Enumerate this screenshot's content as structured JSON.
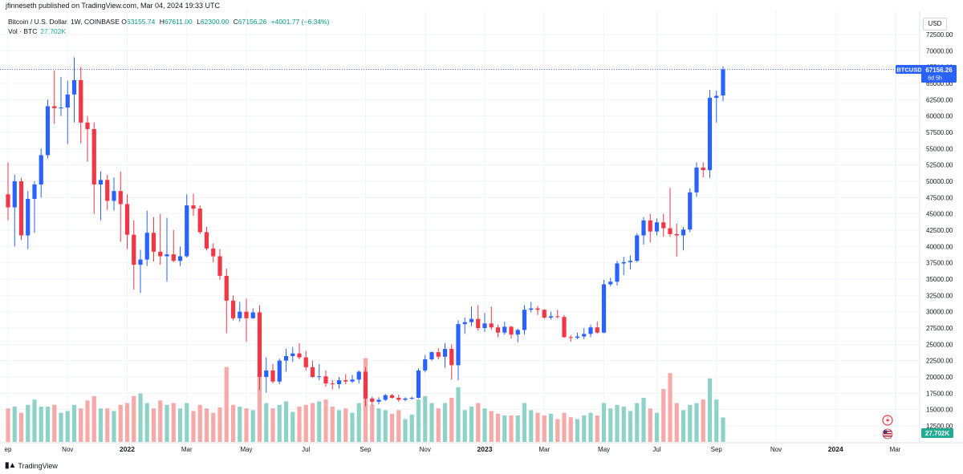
{
  "header": {
    "published_by": "jfinneseth published on TradingView.com, Mar 04, 2024 19:33 UTC"
  },
  "legend": {
    "symbol_title": "Bitcoin / U.S. Dollar, 1W, COINBASE",
    "o_label": "O",
    "o_value": "63155.74",
    "h_label": "H",
    "h_value": "67611.00",
    "l_label": "L",
    "l_value": "62300.00",
    "c_label": "C",
    "c_value": "67156.26",
    "change": "+4001.77 (+6.34%)",
    "vol_label": "Vol · BTC",
    "vol_value": "27.702K"
  },
  "currency": "USD",
  "last_price_tag": {
    "symbol": "BTCUSD",
    "price": "67156.26",
    "countdown": "6d 5h"
  },
  "volume_tag": "27.702K",
  "footer": {
    "brand": "TradingView",
    "logo_icon": "tv-logo-icon"
  },
  "colors": {
    "up": "#2962ff",
    "down": "#f23645",
    "vol_up": "#8fd3c8",
    "vol_down": "#f7a9a7",
    "price_line": "#2962ff",
    "grid": "#f0f3fa"
  },
  "chart_data": {
    "type": "candlestick",
    "title": "Bitcoin / U.S. Dollar, 1W, COINBASE",
    "y_axis_ticks": [
      12500,
      15000,
      17500,
      20000,
      22500,
      25000,
      27500,
      30000,
      32500,
      35000,
      37500,
      40000,
      42500,
      45000,
      47500,
      50000,
      52500,
      55000,
      57500,
      60000,
      62500,
      65000,
      67500,
      70000,
      72500
    ],
    "y_tick_labels": [
      "12500.00",
      "15000.00",
      "17500.00",
      "20000.00",
      "22500.00",
      "25000.00",
      "27500.00",
      "30000.00",
      "32500.00",
      "35000.00",
      "37500.00",
      "40000.00",
      "42500.00",
      "45000.00",
      "47500.00",
      "50000.00",
      "52500.00",
      "55000.00",
      "57500.00",
      "60000.00",
      "62500.00",
      "65000.00",
      "67500.00",
      "70000.00",
      "72500.00"
    ],
    "ylim": [
      10000,
      75000
    ],
    "x_tick_labels": [
      {
        "label": "ep",
        "index": 0,
        "bold": false
      },
      {
        "label": "Nov",
        "index": 9,
        "bold": false
      },
      {
        "label": "2022",
        "index": 18,
        "bold": true
      },
      {
        "label": "Mar",
        "index": 27,
        "bold": false
      },
      {
        "label": "May",
        "index": 36,
        "bold": false
      },
      {
        "label": "Jul",
        "index": 45,
        "bold": false
      },
      {
        "label": "Sep",
        "index": 54,
        "bold": false
      },
      {
        "label": "Nov",
        "index": 63,
        "bold": false
      },
      {
        "label": "2023",
        "index": 72,
        "bold": true
      },
      {
        "label": "Mar",
        "index": 81,
        "bold": false
      },
      {
        "label": "May",
        "index": 90,
        "bold": false
      },
      {
        "label": "Jul",
        "index": 98,
        "bold": false
      },
      {
        "label": "Sep",
        "index": 107,
        "bold": false
      },
      {
        "label": "Nov",
        "index": 116,
        "bold": false
      },
      {
        "label": "2024",
        "index": 125,
        "bold": true
      },
      {
        "label": "Mar",
        "index": 134,
        "bold": false
      }
    ],
    "vol_scale_max": 100000,
    "candles": [
      [
        48000,
        52900,
        44000,
        46000,
        38000
      ],
      [
        46000,
        51000,
        40000,
        50000,
        40000
      ],
      [
        50000,
        50500,
        41000,
        41700,
        33000
      ],
      [
        41700,
        48500,
        39600,
        47300,
        42000
      ],
      [
        47300,
        50000,
        42100,
        49500,
        48000
      ],
      [
        49500,
        55000,
        47500,
        54000,
        40000
      ],
      [
        54000,
        62500,
        53500,
        61500,
        40000
      ],
      [
        61500,
        67000,
        58800,
        61200,
        42000
      ],
      [
        61200,
        66000,
        60000,
        61300,
        33000
      ],
      [
        61300,
        65400,
        55700,
        63300,
        35000
      ],
      [
        63300,
        69000,
        59000,
        65500,
        42000
      ],
      [
        65500,
        67500,
        55800,
        59000,
        38000
      ],
      [
        59000,
        60000,
        53000,
        58000,
        47000
      ],
      [
        58000,
        59000,
        45000,
        49500,
        52000
      ],
      [
        49500,
        51500,
        44000,
        50200,
        38000
      ],
      [
        50200,
        51000,
        45600,
        47000,
        38000
      ],
      [
        47000,
        50600,
        45500,
        48500,
        35000
      ],
      [
        48500,
        51500,
        40700,
        46500,
        42000
      ],
      [
        46500,
        48000,
        39600,
        41800,
        44000
      ],
      [
        41800,
        44000,
        33400,
        37200,
        52000
      ],
      [
        37200,
        39500,
        32900,
        38000,
        55000
      ],
      [
        38000,
        45500,
        37000,
        42100,
        44000
      ],
      [
        42100,
        44500,
        37700,
        39200,
        38000
      ],
      [
        39200,
        45000,
        37200,
        38500,
        47000
      ],
      [
        38500,
        44400,
        34600,
        38800,
        42000
      ],
      [
        38800,
        42500,
        37600,
        37800,
        44000
      ],
      [
        37800,
        40000,
        37000,
        38500,
        38000
      ],
      [
        38500,
        48000,
        38300,
        46300,
        44000
      ],
      [
        46300,
        48100,
        44700,
        45800,
        35000
      ],
      [
        45800,
        46300,
        41900,
        42200,
        42000
      ],
      [
        42200,
        43000,
        39400,
        39700,
        38000
      ],
      [
        39700,
        40500,
        37600,
        38500,
        33000
      ],
      [
        38500,
        39600,
        34900,
        35500,
        39000
      ],
      [
        35500,
        36600,
        26700,
        31700,
        85000
      ],
      [
        31700,
        32500,
        28700,
        29000,
        42000
      ],
      [
        29000,
        31500,
        28500,
        30000,
        40000
      ],
      [
        30000,
        32000,
        25400,
        29000,
        38000
      ],
      [
        29000,
        30500,
        28900,
        29900,
        36000
      ],
      [
        29900,
        31000,
        18000,
        20000,
        90000
      ],
      [
        20000,
        23000,
        17600,
        21000,
        44000
      ],
      [
        21000,
        22000,
        19000,
        19300,
        38000
      ],
      [
        19300,
        22800,
        18900,
        22500,
        42000
      ],
      [
        22500,
        24300,
        20800,
        23200,
        46000
      ],
      [
        23200,
        24600,
        22300,
        23600,
        34000
      ],
      [
        23600,
        25200,
        22700,
        23000,
        40000
      ],
      [
        23000,
        24000,
        21000,
        21500,
        42000
      ],
      [
        21500,
        22500,
        19900,
        20000,
        44000
      ],
      [
        20000,
        22000,
        19500,
        20100,
        46000
      ],
      [
        20100,
        21000,
        18500,
        19000,
        48000
      ],
      [
        19000,
        19500,
        18100,
        18900,
        40000
      ],
      [
        18900,
        20000,
        18200,
        19500,
        36000
      ],
      [
        19500,
        20400,
        18900,
        19300,
        38000
      ],
      [
        19300,
        20300,
        19100,
        19600,
        33000
      ],
      [
        19600,
        21000,
        19000,
        20800,
        44000
      ],
      [
        20800,
        21500,
        15500,
        16700,
        95000
      ],
      [
        16700,
        17000,
        15600,
        16200,
        42000
      ],
      [
        16200,
        16900,
        15800,
        16500,
        38000
      ],
      [
        16500,
        17400,
        16300,
        17200,
        36000
      ],
      [
        17200,
        17400,
        16700,
        16800,
        32000
      ],
      [
        16800,
        17300,
        16200,
        16500,
        36000
      ],
      [
        16500,
        16900,
        16300,
        16700,
        26000
      ],
      [
        16700,
        17000,
        16500,
        16800,
        31000
      ],
      [
        16800,
        21300,
        16700,
        21000,
        48000
      ],
      [
        21000,
        23400,
        20700,
        22700,
        52000
      ],
      [
        22700,
        23900,
        22500,
        23800,
        44000
      ],
      [
        23800,
        24400,
        22700,
        23100,
        38000
      ],
      [
        23100,
        25200,
        21400,
        24300,
        44000
      ],
      [
        24300,
        25000,
        19600,
        21800,
        50000
      ],
      [
        21800,
        28700,
        19500,
        28100,
        62000
      ],
      [
        28100,
        29100,
        26600,
        28400,
        36000
      ],
      [
        28400,
        30800,
        27800,
        28900,
        40000
      ],
      [
        28900,
        31000,
        27100,
        27500,
        44000
      ],
      [
        27500,
        29800,
        26900,
        28200,
        38000
      ],
      [
        28200,
        30800,
        27200,
        27600,
        35000
      ],
      [
        27600,
        28000,
        26100,
        26800,
        32000
      ],
      [
        26800,
        28500,
        26500,
        27700,
        30000
      ],
      [
        27700,
        27800,
        25900,
        26500,
        30000
      ],
      [
        26500,
        27400,
        25300,
        27200,
        30000
      ],
      [
        27200,
        31000,
        26500,
        30300,
        44000
      ],
      [
        30300,
        31500,
        29900,
        30500,
        36000
      ],
      [
        30500,
        30900,
        29500,
        30300,
        33000
      ],
      [
        30300,
        30400,
        28900,
        29100,
        30000
      ],
      [
        29100,
        30000,
        28800,
        29300,
        32000
      ],
      [
        29300,
        30300,
        29000,
        29200,
        26000
      ],
      [
        29200,
        29500,
        26000,
        26100,
        33000
      ],
      [
        26100,
        26400,
        25400,
        26000,
        28000
      ],
      [
        26000,
        26800,
        25800,
        26200,
        26000
      ],
      [
        26200,
        27500,
        25800,
        26600,
        30000
      ],
      [
        26600,
        28000,
        26100,
        27600,
        33000
      ],
      [
        27600,
        28500,
        26600,
        26800,
        30000
      ],
      [
        26800,
        34900,
        26700,
        34200,
        44000
      ],
      [
        34200,
        35200,
        33900,
        34600,
        38000
      ],
      [
        34600,
        37800,
        34000,
        37400,
        42000
      ],
      [
        37400,
        38400,
        35600,
        37600,
        40000
      ],
      [
        37600,
        38600,
        36500,
        37800,
        35000
      ],
      [
        37800,
        42000,
        37600,
        41700,
        44000
      ],
      [
        41700,
        44500,
        40300,
        44000,
        50000
      ],
      [
        44000,
        45000,
        40600,
        42300,
        38000
      ],
      [
        42300,
        44300,
        41700,
        43700,
        33000
      ],
      [
        43700,
        45000,
        41500,
        42800,
        60000
      ],
      [
        42800,
        49000,
        41500,
        41900,
        78000
      ],
      [
        41900,
        43500,
        38500,
        41700,
        44000
      ],
      [
        41700,
        43000,
        39400,
        42600,
        36000
      ],
      [
        42600,
        48900,
        42200,
        48300,
        42000
      ],
      [
        48300,
        52900,
        47600,
        52100,
        44000
      ],
      [
        52100,
        52900,
        50600,
        51700,
        48000
      ],
      [
        51700,
        64000,
        50500,
        62800,
        72000
      ],
      [
        62800,
        63900,
        59000,
        63100,
        48000
      ],
      [
        63155.74,
        67611.0,
        62300.0,
        67156.26,
        27702
      ]
    ]
  }
}
